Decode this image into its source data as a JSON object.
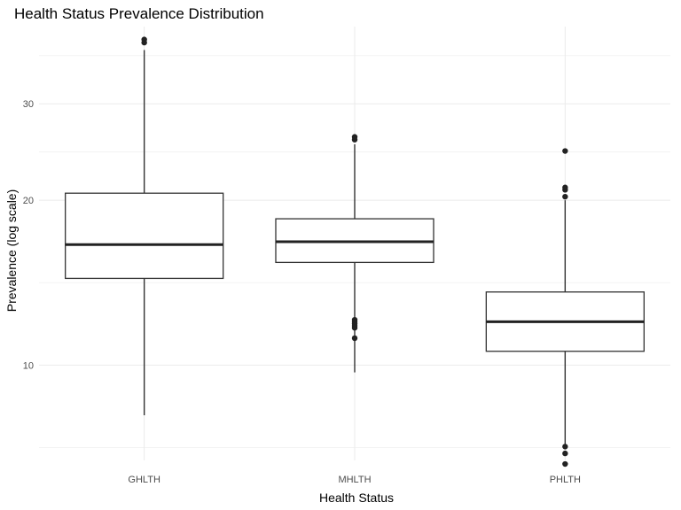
{
  "chart_data": {
    "type": "box",
    "title": "Health Status Prevalence Distribution",
    "xlabel": "Health Status",
    "ylabel": "Prevalence (log scale)",
    "yscale": "log10",
    "ylim": [
      6.7,
      41.5
    ],
    "yticks": [
      10,
      20,
      30
    ],
    "grid": true,
    "categories": [
      "GHLTH",
      "MHLTH",
      "PHLTH"
    ],
    "boxes": [
      {
        "category": "GHLTH",
        "min": 8.1,
        "q1": 14.4,
        "median": 16.6,
        "q3": 20.6,
        "max": 37.6,
        "outliers": [
          38.8,
          39.3
        ]
      },
      {
        "category": "MHLTH",
        "min": 9.7,
        "q1": 15.4,
        "median": 16.8,
        "q3": 18.5,
        "max": 25.3,
        "outliers": [
          11.2,
          11.7,
          11.8,
          11.9,
          12.0,
          12.1,
          25.8,
          26.1
        ]
      },
      {
        "category": "PHLTH",
        "min": 7.1,
        "q1": 10.6,
        "median": 12.0,
        "q3": 13.6,
        "max": 20.0,
        "outliers": [
          6.6,
          6.9,
          7.1,
          20.3,
          20.9,
          21.1,
          24.6
        ]
      }
    ]
  }
}
